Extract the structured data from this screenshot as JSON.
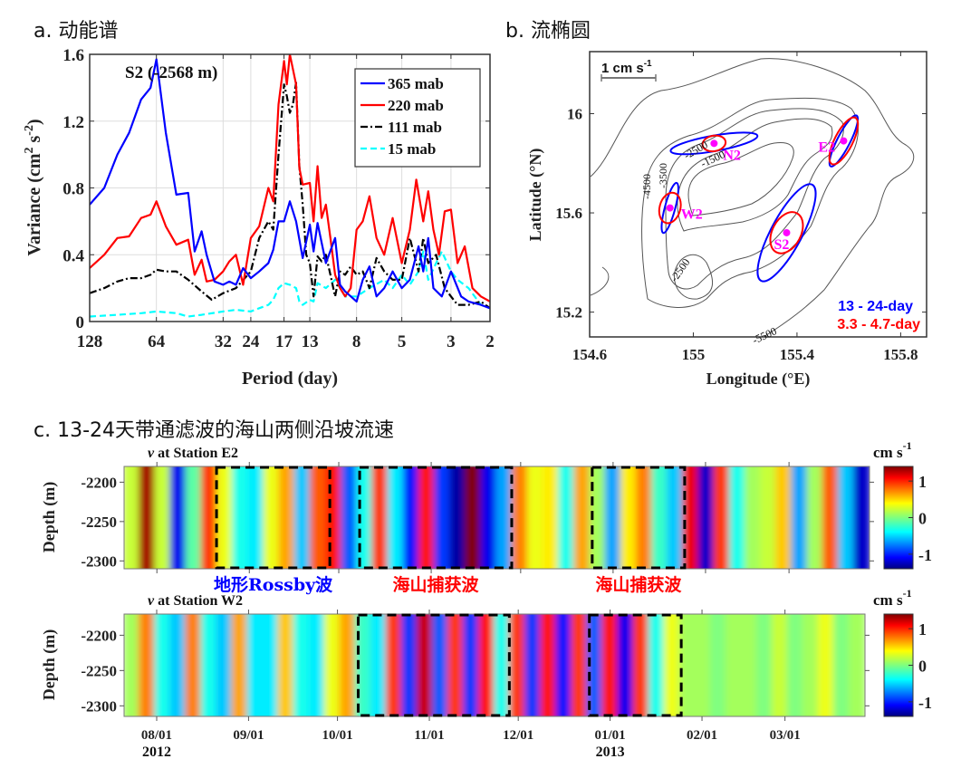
{
  "panels": {
    "a": {
      "title": "a. 动能谱"
    },
    "b": {
      "title": "b. 流椭圆"
    },
    "c": {
      "title": "c. 13-24天带通滤波的海山两侧沿坡流速"
    }
  },
  "chart_data": [
    {
      "id": "a",
      "type": "line",
      "title": "S2 (-2568 m)",
      "xlabel": "Period (day)",
      "ylabel": "Variance (cm² s⁻²)",
      "ylabel_parts": {
        "main": "Variance (cm",
        "sup1": "2",
        "mid": " s",
        "sup2": "-2",
        "end": ")"
      },
      "x_scale": "log-frequency (period axis reversed)",
      "xlim": [
        128,
        2
      ],
      "ylim": [
        0,
        1.6
      ],
      "x_ticks": [
        128,
        64,
        32,
        24,
        17,
        13,
        8,
        5,
        3,
        2
      ],
      "y_ticks": [
        "0",
        "0.4",
        "0.8",
        "1.2",
        "1.6"
      ],
      "grid": true,
      "legend_position": "top-right",
      "series": [
        {
          "name": "365 mab",
          "color": "#0000ff",
          "dash": "solid",
          "x": [
            128,
            110,
            96,
            85,
            75,
            68,
            64,
            58,
            52,
            46,
            43,
            40,
            38,
            35,
            32,
            30,
            28,
            26,
            24,
            22,
            20,
            19,
            18,
            17,
            16,
            15,
            14,
            13,
            12.5,
            12,
            11,
            10,
            9.5,
            9,
            8,
            7.5,
            7,
            6.5,
            6,
            5.5,
            5,
            4.6,
            4.2,
            4,
            3.8,
            3.6,
            3.3,
            3,
            2.7,
            2.5,
            2.2,
            2
          ],
          "y": [
            0.7,
            0.8,
            1.0,
            1.13,
            1.33,
            1.4,
            1.57,
            1.13,
            0.76,
            0.77,
            0.42,
            0.54,
            0.4,
            0.24,
            0.22,
            0.24,
            0.22,
            0.32,
            0.26,
            0.3,
            0.35,
            0.43,
            0.6,
            0.6,
            0.72,
            0.6,
            0.38,
            0.58,
            0.42,
            0.59,
            0.35,
            0.5,
            0.22,
            0.18,
            0.12,
            0.25,
            0.33,
            0.15,
            0.2,
            0.3,
            0.2,
            0.25,
            0.45,
            0.3,
            0.5,
            0.2,
            0.15,
            0.3,
            0.15,
            0.12,
            0.1,
            0.08
          ]
        },
        {
          "name": "220 mab",
          "color": "#ff0000",
          "dash": "solid",
          "x": [
            128,
            110,
            96,
            85,
            75,
            68,
            64,
            58,
            52,
            46,
            43,
            40,
            38,
            35,
            32,
            30,
            28,
            26,
            24,
            22,
            20,
            19,
            18,
            17,
            16.5,
            16,
            15,
            14.5,
            14,
            13,
            12.5,
            12,
            11.5,
            11,
            10.5,
            10,
            9.5,
            9,
            8.5,
            8,
            7.5,
            7,
            6.5,
            6,
            5.5,
            5,
            4.6,
            4.3,
            4,
            3.8,
            3.6,
            3.4,
            3.2,
            3,
            2.8,
            2.6,
            2.4,
            2.2,
            2
          ],
          "y": [
            0.32,
            0.4,
            0.5,
            0.51,
            0.62,
            0.64,
            0.72,
            0.57,
            0.46,
            0.49,
            0.28,
            0.37,
            0.24,
            0.25,
            0.3,
            0.36,
            0.4,
            0.22,
            0.5,
            0.57,
            0.8,
            0.72,
            1.3,
            1.56,
            1.42,
            1.6,
            1.42,
            0.92,
            0.82,
            0.83,
            0.6,
            0.93,
            0.62,
            0.7,
            0.5,
            0.28,
            0.2,
            0.15,
            0.2,
            0.55,
            0.6,
            0.75,
            0.5,
            0.4,
            0.62,
            0.35,
            0.55,
            0.85,
            0.6,
            0.78,
            0.55,
            0.4,
            0.66,
            0.67,
            0.35,
            0.45,
            0.2,
            0.15,
            0.12
          ]
        },
        {
          "name": "111 mab",
          "color": "#000000",
          "dash": "dashdot",
          "x": [
            128,
            110,
            96,
            85,
            75,
            68,
            64,
            58,
            52,
            46,
            40,
            36,
            32,
            28,
            24,
            22,
            20,
            19,
            18,
            17,
            16.5,
            16,
            15.5,
            15,
            14.5,
            14,
            13.5,
            13,
            12.5,
            12,
            11.5,
            11,
            10.5,
            10,
            9.5,
            9,
            8.5,
            8,
            7.5,
            7,
            6.5,
            6,
            5.5,
            5,
            4.6,
            4.2,
            4,
            3.8,
            3.5,
            3.2,
            3,
            2.8,
            2.5,
            2.2,
            2
          ],
          "y": [
            0.17,
            0.2,
            0.24,
            0.26,
            0.26,
            0.28,
            0.31,
            0.3,
            0.3,
            0.25,
            0.18,
            0.13,
            0.17,
            0.2,
            0.3,
            0.5,
            0.6,
            0.55,
            1.0,
            1.42,
            1.35,
            1.25,
            1.3,
            1.43,
            0.93,
            0.7,
            0.4,
            0.35,
            0.15,
            0.39,
            0.36,
            0.4,
            0.28,
            0.15,
            0.3,
            0.28,
            0.33,
            0.28,
            0.3,
            0.2,
            0.38,
            0.3,
            0.25,
            0.25,
            0.5,
            0.3,
            0.5,
            0.35,
            0.4,
            0.2,
            0.15,
            0.1,
            0.1,
            0.12,
            0.08
          ]
        },
        {
          "name": "15 mab",
          "color": "#00ffff",
          "dash": "dashed",
          "x": [
            128,
            96,
            75,
            64,
            52,
            46,
            40,
            32,
            28,
            24,
            22,
            20,
            19,
            18,
            17,
            16,
            15,
            14.5,
            14,
            13,
            12.5,
            12,
            11,
            10,
            9,
            8,
            7,
            6,
            5.5,
            5,
            4.6,
            4.2,
            4,
            3.8,
            3.5,
            3.3,
            3,
            2.8,
            2.5,
            2.2,
            2
          ],
          "y": [
            0.03,
            0.04,
            0.05,
            0.06,
            0.05,
            0.03,
            0.04,
            0.06,
            0.07,
            0.06,
            0.08,
            0.1,
            0.13,
            0.2,
            0.23,
            0.22,
            0.2,
            0.12,
            0.1,
            0.13,
            0.12,
            0.23,
            0.2,
            0.25,
            0.15,
            0.15,
            0.2,
            0.25,
            0.2,
            0.28,
            0.22,
            0.3,
            0.42,
            0.25,
            0.35,
            0.42,
            0.3,
            0.25,
            0.2,
            0.1,
            0.08
          ]
        }
      ]
    },
    {
      "id": "b",
      "type": "scatter",
      "xlabel": "Longitude (°E)",
      "ylabel": "Latitude (°N)",
      "xlim": [
        154.6,
        155.9
      ],
      "ylim": [
        15.1,
        16.25
      ],
      "x_ticks": [
        "154.6",
        "155",
        "155.4",
        "155.8"
      ],
      "y_ticks": [
        "15.2",
        "15.6",
        "16"
      ],
      "scale_bar": {
        "label": "1 cm s",
        "sup": "-1"
      },
      "contour_labels": [
        "-2500",
        "-1500",
        "-4500",
        "-3500",
        "-2500",
        "-5500"
      ],
      "legend": [
        {
          "label": "13 - 24-day",
          "color": "#0000ff"
        },
        {
          "label": "3.3 - 4.7-day",
          "color": "#ff0000"
        }
      ],
      "stations": [
        {
          "name": "N2",
          "lon": 155.08,
          "lat": 15.88,
          "blue": {
            "a": 0.17,
            "b": 0.03,
            "angle": 10
          },
          "red": {
            "a": 0.045,
            "b": 0.03,
            "angle": 10
          }
        },
        {
          "name": "E2",
          "lon": 155.58,
          "lat": 15.89,
          "blue": {
            "a": 0.11,
            "b": 0.025,
            "angle": 63
          },
          "red": {
            "a": 0.1,
            "b": 0.035,
            "angle": 63
          }
        },
        {
          "name": "W2",
          "lon": 154.91,
          "lat": 15.62,
          "blue": {
            "a": 0.1,
            "b": 0.02,
            "angle": 75
          },
          "red": {
            "a": 0.06,
            "b": 0.04,
            "angle": 75
          }
        },
        {
          "name": "S2",
          "lon": 155.36,
          "lat": 15.52,
          "blue": {
            "a": 0.21,
            "b": 0.06,
            "angle": 62
          },
          "red": {
            "a": 0.085,
            "b": 0.055,
            "angle": 62
          }
        }
      ]
    },
    {
      "id": "c-E2",
      "type": "heatmap",
      "title_italic": "v",
      "title": " at Station E2",
      "ylabel": "Depth (m)",
      "ylim": [
        -2310,
        -2180
      ],
      "y_ticks": [
        "-2200",
        "-2250",
        "-2300"
      ],
      "x_ticks": [
        "08/01",
        "09/01",
        "10/01",
        "11/01",
        "12/01",
        "01/01",
        "02/01",
        "03/01"
      ],
      "x_years": [
        "2012",
        "",
        "",
        "",
        "",
        "2013",
        "",
        ""
      ],
      "colorbar": {
        "label": "cm s",
        "sup": "-1",
        "ticks": [
          "1",
          "0",
          "-1"
        ],
        "range": [
          -1.4,
          1.4
        ],
        "colormap": "jet"
      },
      "stripe_values": [
        0.2,
        1.3,
        0.2,
        -1.1,
        -0.1,
        0.9,
        0.3,
        -0.3,
        -0.4,
        0.3,
        0.6,
        -0.5,
        0.8,
        1.0,
        -0.8,
        -0.3,
        0.9,
        -0.4,
        -1.0,
        1.0,
        -0.9,
        -1.3,
        1.4,
        -1.1,
        -0.6,
        0.7,
        0.3,
        0.4,
        -0.3,
        0.6,
        0.1,
        -0.6,
        0.4,
        0.7,
        -0.2,
        -0.5,
        1.1,
        -1.2,
        0.9,
        -0.3,
        0.1,
        0.2,
        0.5,
        -0.6,
        0.1,
        0.8,
        -0.5,
        -1.2
      ],
      "dashed_boxes": [
        {
          "start": "08/21",
          "end": "09/28",
          "label": "地形Rossby波",
          "label_color": "#0000ff"
        },
        {
          "start": "10/08",
          "end": "11/28",
          "label": "海山捕获波",
          "label_color": "#ff0000"
        },
        {
          "start": "12/25",
          "end": "01/25",
          "label": "海山捕获波",
          "label_color": "#ff0000"
        }
      ]
    },
    {
      "id": "c-W2",
      "type": "heatmap",
      "title_italic": "v",
      "title": " at Station W2",
      "ylabel": "Depth (m)",
      "ylim": [
        -2315,
        -2170
      ],
      "y_ticks": [
        "-2200",
        "-2250",
        "-2300"
      ],
      "x_ticks": [
        "08/01",
        "09/01",
        "10/01",
        "11/01",
        "12/01",
        "01/01",
        "02/01",
        "03/01"
      ],
      "x_years": [
        "2012",
        "",
        "",
        "",
        "",
        "2013",
        "",
        ""
      ],
      "colorbar": {
        "label": "cm s",
        "sup": "-1",
        "ticks": [
          "1",
          "0",
          "-1"
        ],
        "range": [
          -1.4,
          1.4
        ],
        "colormap": "jet"
      },
      "stripe_values": [
        0.1,
        0.7,
        -0.3,
        -0.5,
        0.7,
        -0.3,
        -0.5,
        0.6,
        -0.4,
        -0.4,
        0.5,
        -0.3,
        -0.4,
        0.3,
        0.6,
        -0.2,
        -0.4,
        0.9,
        -0.9,
        1.2,
        -0.8,
        0.9,
        -0.9,
        1.0,
        -0.3,
        0.9,
        -0.9,
        1.0,
        -1.0,
        0.9,
        -0.8,
        1.0,
        -1.1,
        0.9,
        -0.3,
        0.3,
        0.1,
        0.1,
        0.0,
        0.1,
        0.1,
        0.0,
        0.2,
        0.0,
        0.1,
        0.3,
        0.0,
        0.1
      ],
      "dashed_boxes": [
        {
          "start": "10/08",
          "end": "11/28"
        },
        {
          "start": "12/25",
          "end": "01/25"
        }
      ]
    }
  ]
}
